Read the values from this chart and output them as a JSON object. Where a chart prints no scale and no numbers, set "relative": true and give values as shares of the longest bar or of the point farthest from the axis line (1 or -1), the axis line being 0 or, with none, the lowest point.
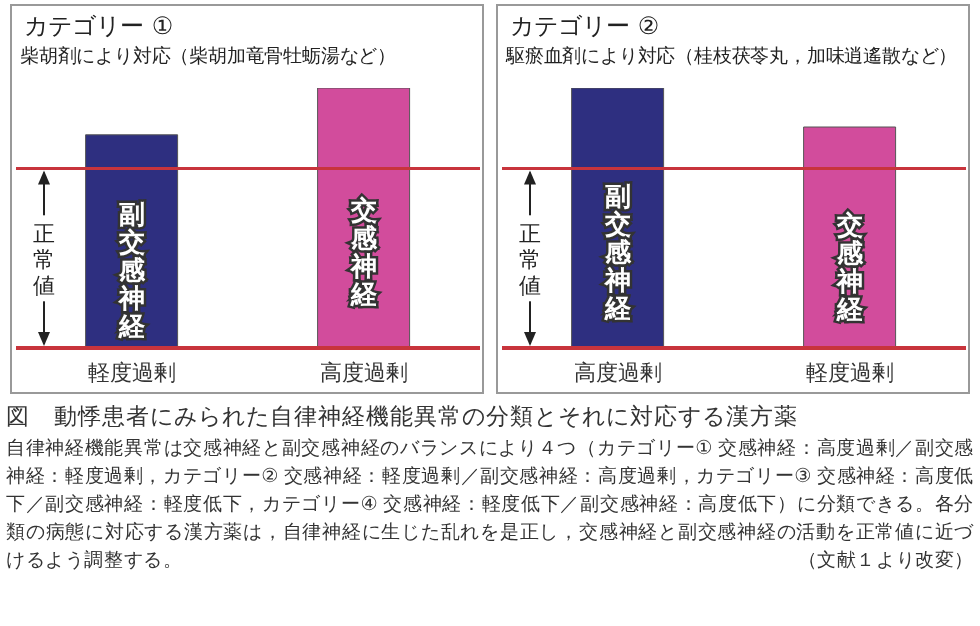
{
  "chart_data": [
    {
      "type": "bar",
      "title": "カテゴリー ①",
      "subtitle": "柴胡剤により対応（柴胡加竜骨牡蛎湯など）",
      "categories": [
        "軽度過剰",
        "高度過剰"
      ],
      "relative": true,
      "stacked": true,
      "series": [
        {
          "name": "副交感神経",
          "color": "#2e2f80",
          "values": [
            0.82,
            null
          ]
        },
        {
          "name": "交感神経",
          "color": "#d24c9c",
          "values": [
            null,
            1
          ]
        }
      ],
      "ref_lines": [
        {
          "axis": "y",
          "value": 0.69,
          "color": "#c8343c"
        }
      ],
      "annotations": [
        "正常値",
        "図　動悸患者にみられた自律神経機能異常の分類とそれに対応する漢方薬",
        "自律神経機能異常は交感神経と副交感神経のバランスにより４つ（カテゴリー① 交感神経：高度過剰／副交感神経：軽度過剰，カテゴリー② 交感神経：軽度過剰／副交感神経：高度過剰，カテゴリー③ 交感神経：高度低下／副交感神経：軽度低下，カテゴリー④ 交感神経：軽度低下／副交感神経：高度低下）に分類できる。各分類の病態に対応する漢方薬は，自律神経に生じた乱れを是正し，交感神経と副交感神経の活動を正常値に近づけるよう調整する。",
        "（文献１より改変）"
      ],
      "legend": false,
      "grid": false
    },
    {
      "type": "bar",
      "title": "カテゴリー ②",
      "subtitle": "駆瘀血剤により対応（桂枝茯苓丸，加味逍遙散など）",
      "categories": [
        "高度過剰",
        "軽度過剰"
      ],
      "relative": true,
      "stacked": true,
      "series": [
        {
          "name": "副交感神経",
          "color": "#2e2f80",
          "values": [
            1,
            null
          ]
        },
        {
          "name": "交感神経",
          "color": "#d24c9c",
          "values": [
            null,
            0.85
          ]
        }
      ],
      "ref_lines": [
        {
          "axis": "y",
          "value": 0.69,
          "color": "#c8343c"
        }
      ],
      "annotations": [
        "正常値"
      ],
      "legend": false,
      "grid": false
    }
  ]
}
